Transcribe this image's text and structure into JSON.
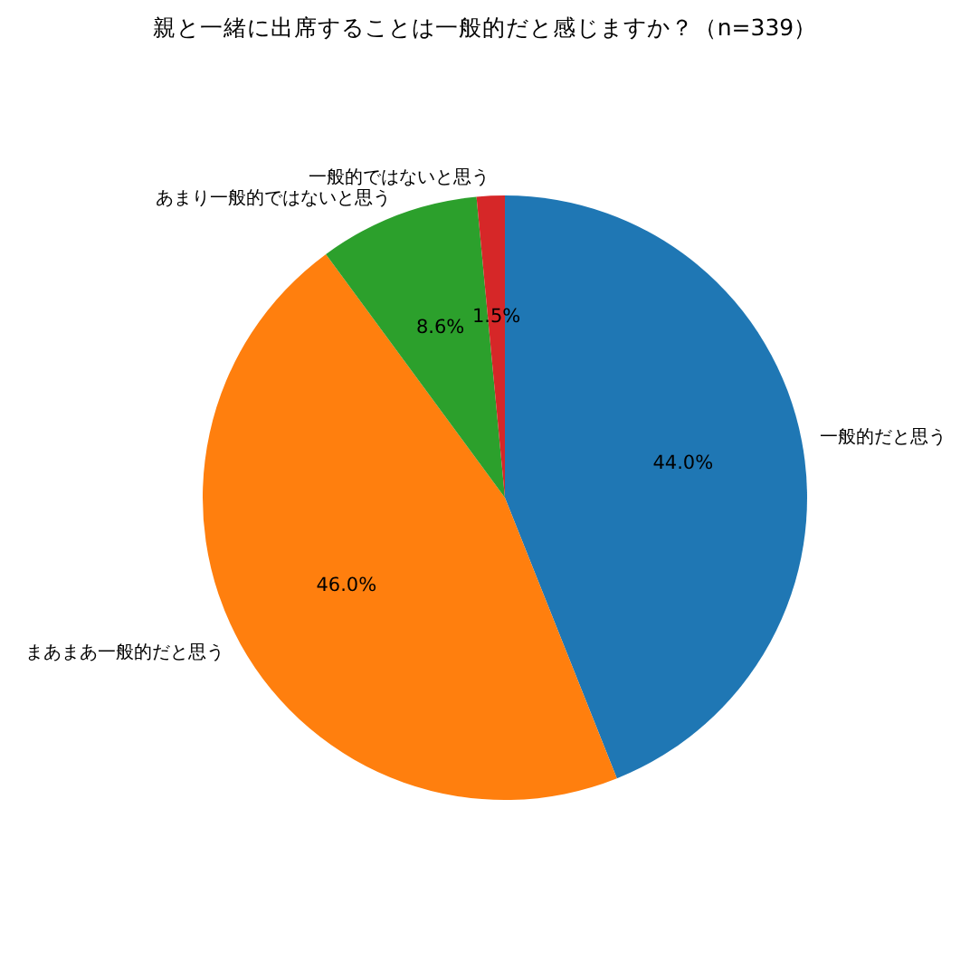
{
  "chart_data": {
    "type": "pie",
    "title": "親と一緒に出席することは一般的だと感じますか？（n=339）",
    "categories": [
      "一般的だと思う",
      "まあまあ一般的だと思う",
      "あまり一般的ではないと思う",
      "一般的ではないと思う"
    ],
    "values": [
      44.0,
      46.0,
      8.6,
      1.5
    ],
    "colors": [
      "#1f77b4",
      "#ff7f0e",
      "#2ca02c",
      "#d62728"
    ],
    "value_labels": [
      "44.0%",
      "46.0%",
      "8.6%",
      "1.5%"
    ]
  }
}
